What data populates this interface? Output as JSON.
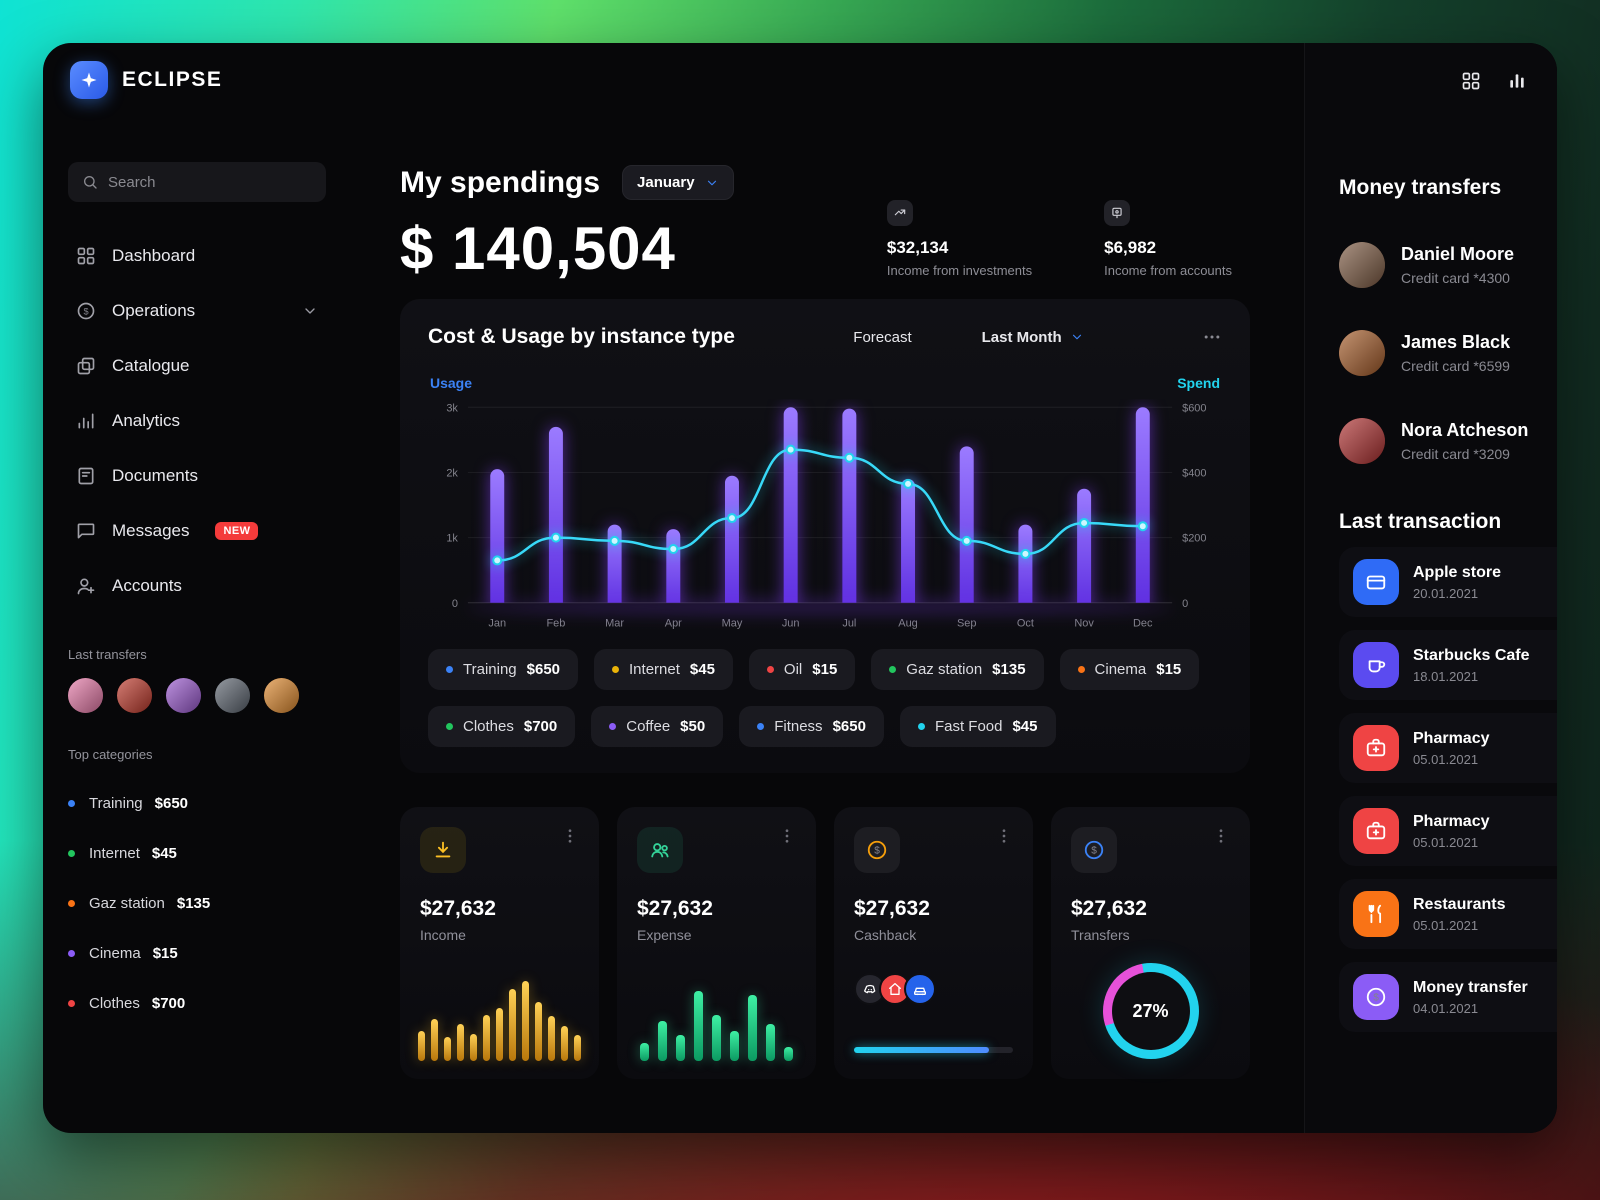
{
  "theme": {
    "accent_blue": "#3b82f6",
    "donut_pink": "#e651d9",
    "donut_cyan": "#22d3ee",
    "bar_purple": "#7c3aed"
  },
  "brand": {
    "name": "ECLIPSE",
    "icon": "sparkle"
  },
  "topbar": {
    "apps_icon": "grid",
    "stats_icon": "chart-bars"
  },
  "sidebar": {
    "search": {
      "placeholder": "Search",
      "icon": "search"
    },
    "nav": [
      {
        "label": "Dashboard",
        "icon": "dashboard"
      },
      {
        "label": "Operations",
        "icon": "operations",
        "chevron": true
      },
      {
        "label": "Catalogue",
        "icon": "catalogue"
      },
      {
        "label": "Analytics",
        "icon": "analytics"
      },
      {
        "label": "Documents",
        "icon": "documents"
      },
      {
        "label": "Messages",
        "icon": "messages",
        "badge": "NEW"
      },
      {
        "label": "Accounts",
        "icon": "accounts"
      }
    ],
    "last_transfers": {
      "label": "Last transfers",
      "avatars": [
        {
          "color": "#e779a8"
        },
        {
          "color": "#c0392b"
        },
        {
          "color": "#9b59d0"
        },
        {
          "color": "#5d6570"
        },
        {
          "color": "#e08a2e"
        }
      ]
    },
    "top_categories": {
      "label": "Top categories",
      "items": [
        {
          "label": "Training",
          "value": "$650",
          "color": "#3b82f6"
        },
        {
          "label": "Internet",
          "value": "$45",
          "color": "#22c55e"
        },
        {
          "label": "Gaz station",
          "value": "$135",
          "color": "#f97316"
        },
        {
          "label": "Cinema",
          "value": "$15",
          "color": "#8b5cf6"
        },
        {
          "label": "Clothes",
          "value": "$700",
          "color": "#ef4444"
        }
      ]
    }
  },
  "main": {
    "title": "My spendings",
    "month_select": {
      "label": "January",
      "icon": "chevron-down"
    },
    "total": "$ 140,504",
    "stats": [
      {
        "icon": "trend",
        "value": "$32,134",
        "label": "Income from investments"
      },
      {
        "icon": "pin",
        "value": "$6,982",
        "label": "Income from accounts"
      }
    ],
    "chart_card": {
      "title": "Cost & Usage by instance type",
      "forecast_label": "Forecast",
      "period_label": "Last Month",
      "period_icon": "chevron-down",
      "menu_icon": "dots-h",
      "axis_left_label": "Usage",
      "axis_right_label": "Spend",
      "chips_row1": [
        {
          "label": "Training",
          "value": "$650",
          "color": "#3b82f6"
        },
        {
          "label": "Internet",
          "value": "$45",
          "color": "#eab308"
        },
        {
          "label": "Oil",
          "value": "$15",
          "color": "#ef4444"
        },
        {
          "label": "Gaz station",
          "value": "$135",
          "color": "#22c55e"
        },
        {
          "label": "Cinema",
          "value": "$15",
          "color": "#f97316"
        }
      ],
      "chips_row2": [
        {
          "label": "Clothes",
          "value": "$700",
          "color": "#22c55e"
        },
        {
          "label": "Coffee",
          "value": "$50",
          "color": "#8b5cf6"
        },
        {
          "label": "Fitness",
          "value": "$650",
          "color": "#3b82f6"
        },
        {
          "label": "Fast Food",
          "value": "$45",
          "color": "#22d3ee"
        }
      ]
    },
    "stat_cards": [
      {
        "icon": "download",
        "value": "$27,632",
        "label": "Income",
        "spark": [
          38,
          52,
          30,
          46,
          34,
          58,
          66,
          90,
          100,
          74,
          56,
          44,
          32
        ]
      },
      {
        "icon": "users",
        "value": "$27,632",
        "label": "Expense",
        "spark": [
          22,
          50,
          32,
          88,
          58,
          38,
          82,
          46,
          18
        ]
      },
      {
        "icon": "coin",
        "value": "$27,632",
        "label": "Cashback",
        "progress": 85,
        "badges": [
          {
            "icon": "discord",
            "color": "#26262e"
          },
          {
            "icon": "home",
            "color": "#ef4444"
          },
          {
            "icon": "car",
            "color": "#2563eb"
          }
        ]
      },
      {
        "icon": "coin",
        "value": "$27,632",
        "label": "Transfers",
        "percent_label": "27%",
        "percent": 27
      }
    ]
  },
  "right": {
    "money_transfers_title": "Money transfers",
    "transfers": [
      {
        "name": "Daniel Moore",
        "card": "Credit card *4300",
        "avatar": "#7d5a42"
      },
      {
        "name": "James Black",
        "card": "Credit card *6599",
        "avatar": "#a55b28"
      },
      {
        "name": "Nora Atcheson",
        "card": "Credit card *3209",
        "avatar": "#b03030"
      }
    ],
    "last_transaction_title": "Last transaction",
    "transactions": [
      {
        "name": "Apple store",
        "date": "20.01.2021",
        "icon": "card",
        "color": "#2f6bf6"
      },
      {
        "name": "Starbucks Cafe",
        "date": "18.01.2021",
        "icon": "cup",
        "color": "#5b4bf0"
      },
      {
        "name": "Pharmacy",
        "date": "05.01.2021",
        "icon": "medkit",
        "color": "#ef4444"
      },
      {
        "name": "Pharmacy",
        "date": "05.01.2021",
        "icon": "medkit",
        "color": "#ef4444"
      },
      {
        "name": "Restaurants",
        "date": "05.01.2021",
        "icon": "utensils",
        "color": "#f97316"
      },
      {
        "name": "Money transfer",
        "date": "04.01.2021",
        "icon": "transfer",
        "color": "#8b5cf6"
      }
    ]
  },
  "chart_data": {
    "type": "bar",
    "title": "Cost & Usage by instance type",
    "categories": [
      "Jan",
      "Feb",
      "Mar",
      "Apr",
      "May",
      "Jun",
      "Jul",
      "Aug",
      "Sep",
      "Oct",
      "Nov",
      "Dec"
    ],
    "series": [
      {
        "name": "Usage",
        "type": "bar",
        "axis": "left",
        "values": [
          2050,
          2700,
          1200,
          1130,
          1950,
          3000,
          2980,
          1900,
          2400,
          1200,
          1750,
          3000
        ]
      },
      {
        "name": "Spend",
        "type": "line",
        "axis": "right",
        "values": [
          130,
          200,
          190,
          165,
          260,
          470,
          445,
          365,
          190,
          150,
          245,
          235
        ]
      }
    ],
    "ylim_left": [
      0,
      3000
    ],
    "ylim_right": [
      0,
      600
    ],
    "ticks_left": [
      {
        "v": 0,
        "label": "0"
      },
      {
        "v": 1000,
        "label": "1k"
      },
      {
        "v": 2000,
        "label": "2k"
      },
      {
        "v": 3000,
        "label": "3k"
      }
    ],
    "ticks_right": [
      {
        "v": 0,
        "label": "0"
      },
      {
        "v": 200,
        "label": "$200"
      },
      {
        "v": 400,
        "label": "$400"
      },
      {
        "v": 600,
        "label": "$600"
      }
    ],
    "legend": [
      "Usage",
      "Spend"
    ],
    "grid": true,
    "legend_position": "top"
  }
}
